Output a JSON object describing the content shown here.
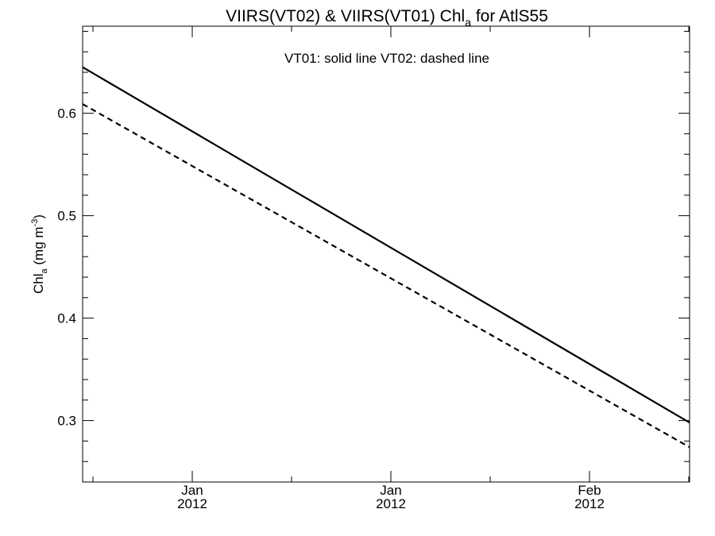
{
  "chart_data": {
    "type": "line",
    "title_prefix": "VIIRS(VT02) & VIIRS(VT01)  Chl",
    "title_sub": "a",
    "title_suffix": " for AtlS55",
    "annotation": "VT01: solid line   VT02: dashed line",
    "ylabel_prefix": "Chl",
    "ylabel_sub": "a",
    "ylabel_mid": " (mg m",
    "ylabel_sup": "-3",
    "ylabel_suffix": ")",
    "ylim": [
      0.24,
      0.685
    ],
    "yticks": [
      0.3,
      0.4,
      0.5,
      0.6
    ],
    "ytick_labels": [
      "0.3",
      "0.4",
      "0.5",
      "0.6"
    ],
    "xticks": [
      {
        "month": "Jan",
        "year": "2012"
      },
      {
        "month": "Jan",
        "year": "2012"
      },
      {
        "month": "Feb",
        "year": "2012"
      }
    ],
    "series": [
      {
        "name": "VT01",
        "style": "solid",
        "color": "#000000",
        "start": 0.645,
        "end": 0.298
      },
      {
        "name": "VT02",
        "style": "dashed",
        "color": "#000000",
        "start": 0.609,
        "end": 0.274
      }
    ]
  }
}
